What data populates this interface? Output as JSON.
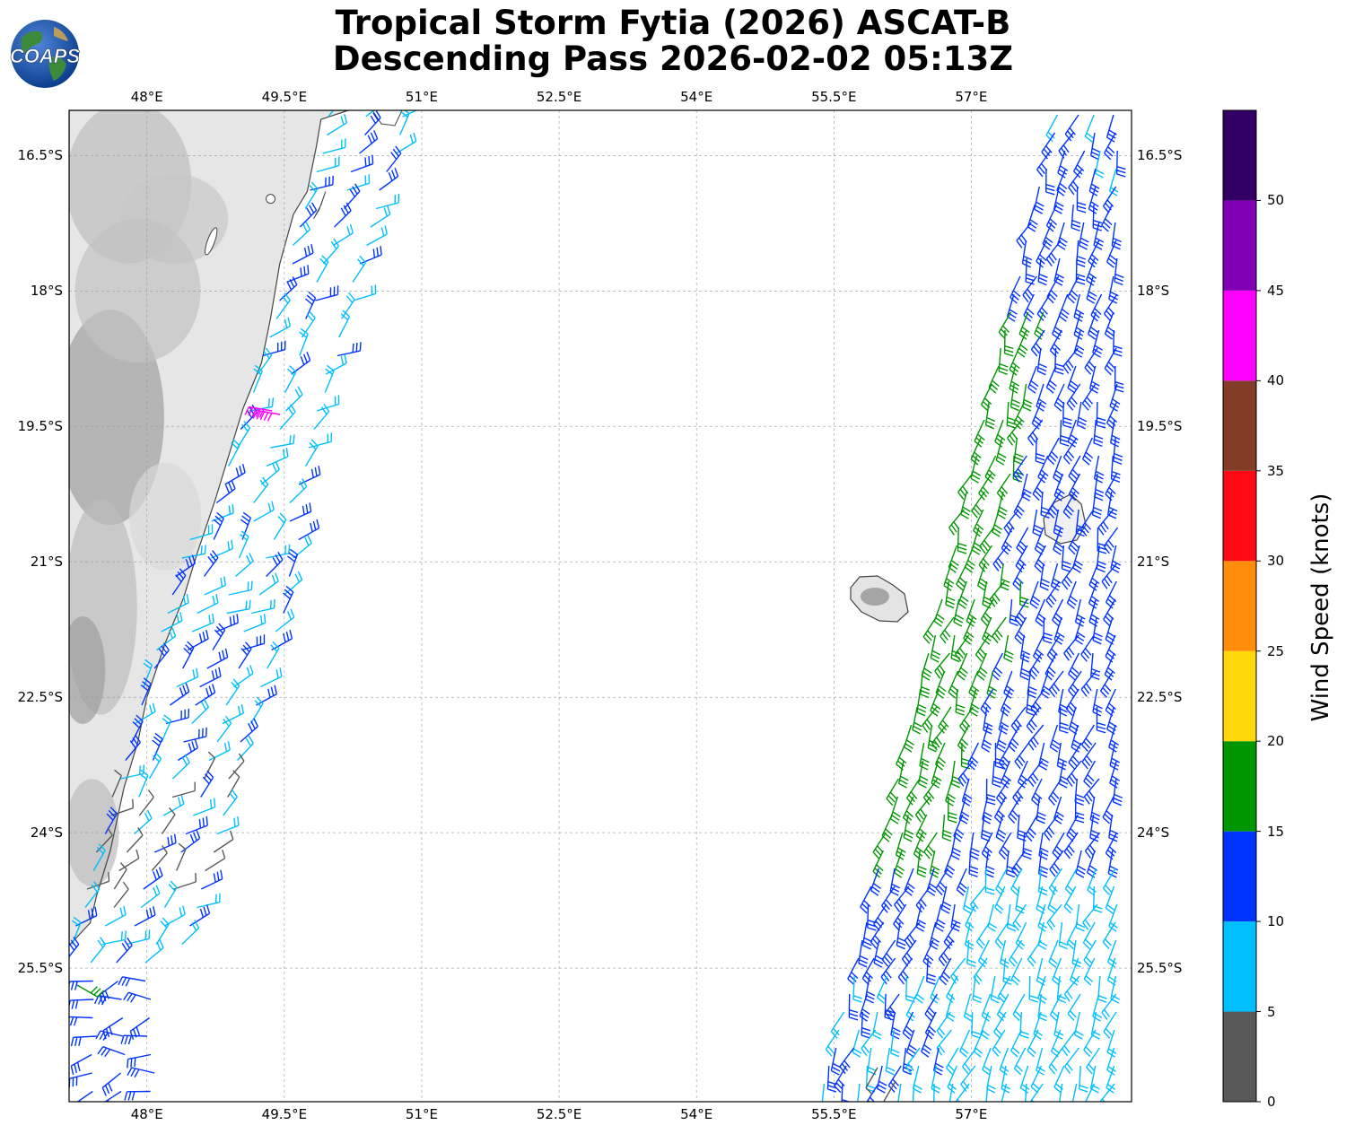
{
  "title": {
    "line1": "Tropical Storm Fytia (2026) ASCAT-B",
    "line2": "Descending Pass 2026-02-02 05:13Z"
  },
  "logo": {
    "text": "COAPS",
    "icon": "globe-icon"
  },
  "map": {
    "lon_range": [
      47.15,
      58.75
    ],
    "lat_range": [
      -16.0,
      -26.98
    ],
    "lon_ticks": [
      "48°E",
      "49.5°E",
      "51°E",
      "52.5°E",
      "54°E",
      "55.5°E",
      "57°E"
    ],
    "lon_values": [
      48,
      49.5,
      51,
      52.5,
      54,
      55.5,
      57
    ],
    "lat_ticks": [
      "16.5°S",
      "18°S",
      "19.5°S",
      "21°S",
      "22.5°S",
      "24°S",
      "25.5°S"
    ],
    "lat_values": [
      -16.5,
      -18,
      -19.5,
      -21,
      -22.5,
      -24,
      -25.5
    ],
    "features": [
      "Madagascar coastline",
      "Réunion island",
      "Mauritius island"
    ],
    "swaths": [
      {
        "name": "west-swath",
        "region": "east coast of Madagascar"
      },
      {
        "name": "east-swath",
        "region": "around Mauritius"
      }
    ]
  },
  "colorbar": {
    "label": "Wind Speed (knots)",
    "bounds": [
      0,
      5,
      10,
      15,
      20,
      25,
      30,
      35,
      40,
      45,
      50,
      55
    ],
    "tick_labels": [
      "0",
      "5",
      "10",
      "15",
      "20",
      "25",
      "30",
      "35",
      "40",
      "45",
      "50"
    ],
    "colors": [
      "#595959",
      "#00bfff",
      "#0033ff",
      "#009600",
      "#ffd70a",
      "#ff8c0a",
      "#ff0a14",
      "#823c28",
      "#ff00ff",
      "#8200b4",
      "#320064"
    ]
  }
}
